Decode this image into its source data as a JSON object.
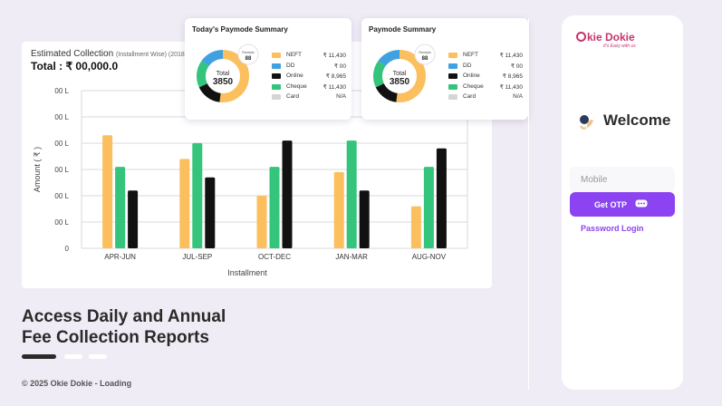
{
  "estimated": {
    "title": "Estimated Collection",
    "subtitle": "(Installment Wise) (2018 -",
    "total": "Total : ₹ 00,000.0"
  },
  "chart_data": {
    "type": "bar",
    "xlabel": "Installment",
    "ylabel": "Amount ( ₹ )",
    "ytick_labels": [
      "0",
      "00 L",
      "00 L",
      "00 L",
      "00 L",
      "00 L",
      "00 L"
    ],
    "categories": [
      "APR-JUN",
      "JUL-SEP",
      "OCT-DEC",
      "JAN-MAR",
      "AUG-NOV"
    ],
    "ylim": [
      0,
      6
    ],
    "grid": true,
    "series": [
      {
        "color": "#fbbf5e",
        "values": [
          4.3,
          3.4,
          2.0,
          2.9,
          1.6
        ]
      },
      {
        "color": "#34c47c",
        "values": [
          3.1,
          4.0,
          3.1,
          4.1,
          3.1
        ]
      },
      {
        "color": "#111111",
        "values": [
          2.2,
          2.7,
          4.1,
          2.2,
          3.8
        ]
      }
    ]
  },
  "pay_cards": [
    {
      "title": "Today's Paymode Summary",
      "total_label": "Total",
      "total_value": "3850",
      "badge_label": "Receipts",
      "badge_value": "88",
      "legend": [
        {
          "name": "NEFT",
          "value": "₹ 11,430",
          "color": "#fbbf5e"
        },
        {
          "name": "DD",
          "value": "₹ 00",
          "color": "#3fa1e0"
        },
        {
          "name": "Online",
          "value": "₹ 8,965",
          "color": "#111111"
        },
        {
          "name": "Cheque",
          "value": "₹ 11,430",
          "color": "#34c47c"
        },
        {
          "name": "Card",
          "value": "N/A",
          "color": "#d5d5d5"
        }
      ]
    },
    {
      "title": "Paymode Summary",
      "total_label": "Total",
      "total_value": "3850",
      "badge_label": "Receipts",
      "badge_value": "88",
      "legend": [
        {
          "name": "NEFT",
          "value": "₹ 11,430",
          "color": "#fbbf5e"
        },
        {
          "name": "DD",
          "value": "₹ 00",
          "color": "#3fa1e0"
        },
        {
          "name": "Online",
          "value": "₹ 8,965",
          "color": "#111111"
        },
        {
          "name": "Cheque",
          "value": "₹ 11,430",
          "color": "#34c47c"
        },
        {
          "name": "Card",
          "value": "N/A",
          "color": "#d5d5d5"
        }
      ]
    }
  ],
  "donut": [
    {
      "color": "#fbbf5e",
      "fraction": 0.52
    },
    {
      "color": "#111111",
      "fraction": 0.16
    },
    {
      "color": "#34c47c",
      "fraction": 0.17
    },
    {
      "color": "#3fa1e0",
      "fraction": 0.15
    }
  ],
  "login": {
    "brand": "kie Dokie",
    "tagline": "It's Easy with us",
    "welcome": "Welcome",
    "mobile_placeholder": "Mobile",
    "otp_button": "Get OTP",
    "password_login": "Password Login"
  },
  "headline": {
    "line1": "Access Daily and Annual",
    "line2": "Fee Collection Reports"
  },
  "footer": "© 2025 Okie Dokie - Loading",
  "colors": {
    "accent": "#8c44f2",
    "brand": "#c6346b",
    "background": "#f0ecf5"
  }
}
